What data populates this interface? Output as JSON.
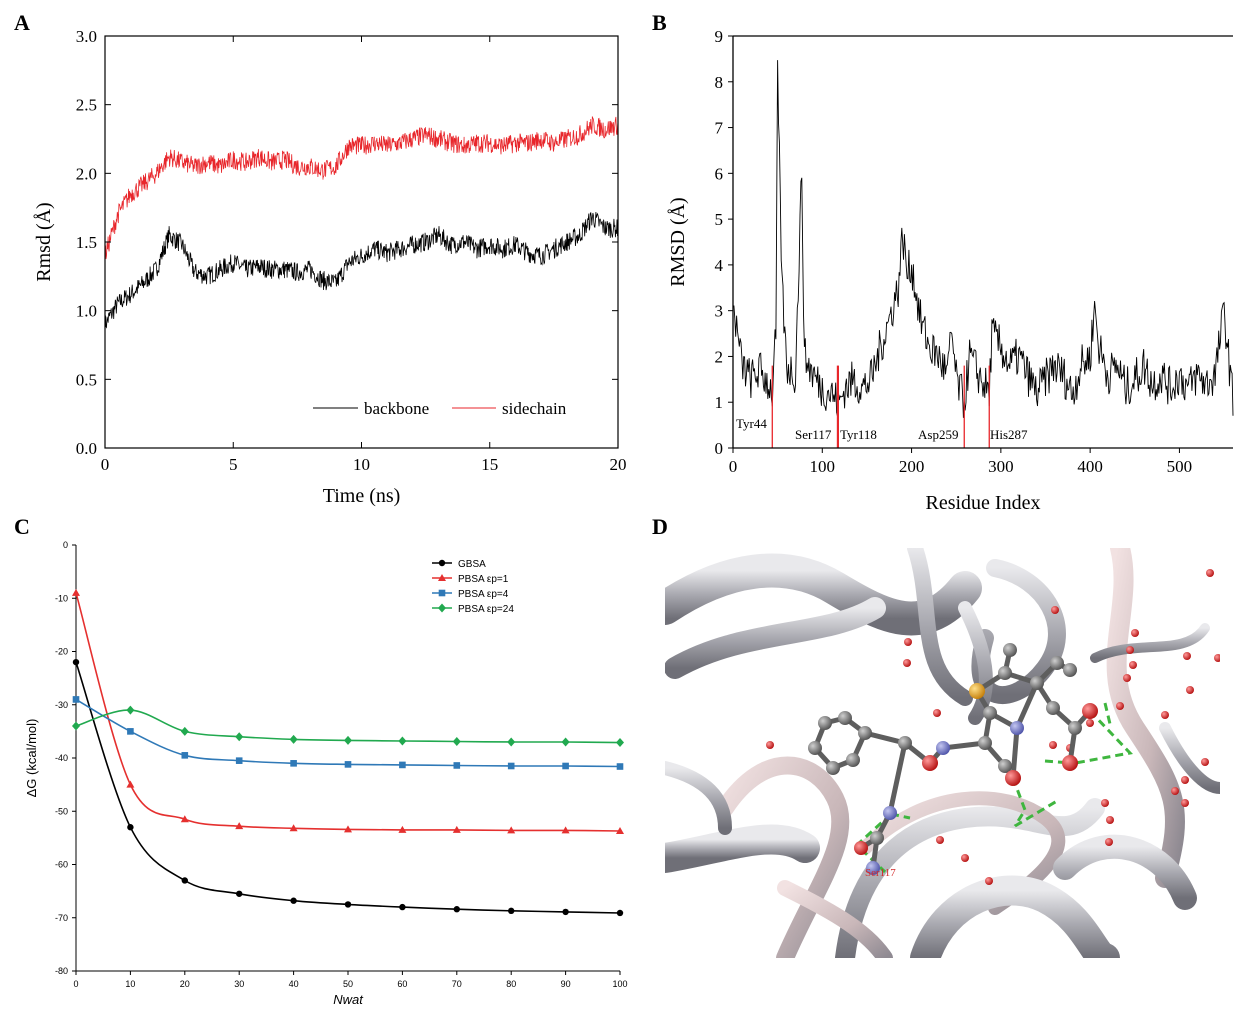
{
  "panels": {
    "a": "A",
    "b": "B",
    "c": "C",
    "d": "D"
  },
  "chart_data": [
    {
      "id": "A",
      "type": "line",
      "xlabel": "Time (ns)",
      "ylabel": "Rmsd (Å)",
      "xlim": [
        0,
        20
      ],
      "ylim": [
        0.0,
        3.0
      ],
      "xticks": [
        "0",
        "5",
        "10",
        "15",
        "20"
      ],
      "yticks": [
        "0.0",
        "0.5",
        "1.0",
        "1.5",
        "2.0",
        "2.5",
        "3.0"
      ],
      "legend_position": "bottom-right",
      "series": [
        {
          "name": "backbone",
          "color": "#000000",
          "x": [
            0,
            0.5,
            1,
            1.5,
            2,
            2.5,
            3,
            3.5,
            4,
            4.5,
            5,
            5.5,
            6,
            6.5,
            7,
            7.5,
            8,
            8.5,
            9,
            9.5,
            10,
            10.5,
            11,
            11.5,
            12,
            12.5,
            13,
            13.5,
            14,
            14.5,
            15,
            15.5,
            16,
            16.5,
            17,
            17.5,
            18,
            18.5,
            19,
            19.5,
            20
          ],
          "y": [
            0.9,
            1.05,
            1.12,
            1.2,
            1.3,
            1.55,
            1.48,
            1.28,
            1.25,
            1.3,
            1.35,
            1.3,
            1.32,
            1.3,
            1.3,
            1.28,
            1.3,
            1.22,
            1.2,
            1.35,
            1.4,
            1.45,
            1.42,
            1.45,
            1.48,
            1.5,
            1.55,
            1.48,
            1.5,
            1.45,
            1.48,
            1.45,
            1.48,
            1.42,
            1.4,
            1.45,
            1.5,
            1.55,
            1.68,
            1.6,
            1.6
          ]
        },
        {
          "name": "sidechain",
          "color": "#e8262b",
          "x": [
            0,
            0.5,
            1,
            1.5,
            2,
            2.5,
            3,
            3.5,
            4,
            4.5,
            5,
            5.5,
            6,
            6.5,
            7,
            7.5,
            8,
            8.5,
            9,
            9.5,
            10,
            10.5,
            11,
            11.5,
            12,
            12.5,
            13,
            13.5,
            14,
            14.5,
            15,
            15.5,
            16,
            16.5,
            17,
            17.5,
            18,
            18.5,
            19,
            19.5,
            20
          ],
          "y": [
            1.4,
            1.7,
            1.85,
            1.92,
            2.0,
            2.12,
            2.08,
            2.05,
            2.08,
            2.05,
            2.1,
            2.08,
            2.12,
            2.08,
            2.1,
            2.05,
            2.05,
            2.02,
            2.05,
            2.2,
            2.2,
            2.22,
            2.2,
            2.22,
            2.25,
            2.28,
            2.25,
            2.22,
            2.2,
            2.22,
            2.22,
            2.2,
            2.22,
            2.22,
            2.25,
            2.22,
            2.25,
            2.28,
            2.35,
            2.32,
            2.35
          ]
        }
      ]
    },
    {
      "id": "B",
      "type": "line",
      "xlabel": "Residue Index",
      "ylabel": "RMSD (Å)",
      "xlim": [
        0,
        560
      ],
      "ylim": [
        0,
        9
      ],
      "xticks": [
        "0",
        "100",
        "200",
        "300",
        "400",
        "500"
      ],
      "yticks": [
        "0",
        "1",
        "2",
        "3",
        "4",
        "5",
        "6",
        "7",
        "8",
        "9"
      ],
      "series": [
        {
          "name": "",
          "color": "#000000",
          "x": [
            1,
            10,
            20,
            30,
            40,
            44,
            48,
            50,
            55,
            60,
            70,
            77,
            80,
            90,
            100,
            110,
            117,
            118,
            125,
            135,
            145,
            155,
            165,
            175,
            185,
            190,
            195,
            200,
            210,
            220,
            230,
            240,
            245,
            250,
            259,
            265,
            275,
            287,
            290,
            300,
            310,
            320,
            330,
            340,
            350,
            360,
            370,
            380,
            390,
            400,
            405,
            410,
            420,
            430,
            440,
            450,
            460,
            470,
            480,
            490,
            500,
            510,
            520,
            530,
            540,
            550,
            560
          ],
          "y": [
            3.0,
            1.8,
            1.5,
            1.7,
            1.4,
            1.2,
            2.5,
            8.05,
            3.5,
            1.8,
            1.6,
            6.1,
            2.0,
            1.6,
            1.3,
            1.2,
            1.0,
            0.9,
            1.3,
            1.5,
            1.3,
            1.5,
            2.2,
            2.8,
            3.5,
            4.7,
            3.8,
            4.0,
            2.8,
            2.2,
            2.0,
            1.6,
            2.5,
            1.5,
            1.0,
            2.0,
            1.6,
            1.2,
            2.5,
            2.2,
            1.8,
            2.0,
            1.6,
            1.2,
            1.5,
            1.8,
            1.6,
            1.2,
            1.8,
            2.0,
            3.1,
            2.2,
            1.6,
            1.8,
            1.3,
            1.5,
            1.8,
            1.4,
            1.6,
            1.3,
            1.6,
            1.3,
            1.6,
            1.4,
            1.6,
            3.0,
            1.0
          ]
        }
      ],
      "markers": [
        {
          "x": 44,
          "label": "Tyr44"
        },
        {
          "x": 117,
          "label": "Ser117"
        },
        {
          "x": 118,
          "label": "Tyr118"
        },
        {
          "x": 259,
          "label": "Asp259"
        },
        {
          "x": 287,
          "label": "His287"
        }
      ]
    },
    {
      "id": "C",
      "type": "line",
      "xlabel": "Nwat",
      "ylabel": "ΔG (kcal/mol)",
      "xlim": [
        0,
        100
      ],
      "ylim": [
        -80,
        0
      ],
      "xticks": [
        "0",
        "10",
        "20",
        "30",
        "40",
        "50",
        "60",
        "70",
        "80",
        "90",
        "100"
      ],
      "yticks": [
        "0",
        "-10",
        "-20",
        "-30",
        "-40",
        "-50",
        "-60",
        "-70",
        "-80"
      ],
      "legend_position": "top-right",
      "x": [
        0,
        10,
        20,
        30,
        40,
        50,
        60,
        70,
        80,
        90,
        100
      ],
      "series": [
        {
          "name": "GBSA",
          "color": "#000000",
          "marker": "circle",
          "values": [
            -22,
            -53,
            -63,
            -65.5,
            -66.8,
            -67.5,
            -68.0,
            -68.4,
            -68.7,
            -68.9,
            -69.1
          ]
        },
        {
          "name": "PBSA εp=1",
          "color": "#e5302f",
          "marker": "triangle",
          "values": [
            -9,
            -45,
            -51.5,
            -52.8,
            -53.2,
            -53.4,
            -53.5,
            -53.5,
            -53.6,
            -53.6,
            -53.7
          ]
        },
        {
          "name": "PBSA εp=4",
          "color": "#2f79b7",
          "marker": "square",
          "values": [
            -29,
            -35,
            -39.5,
            -40.5,
            -41.0,
            -41.2,
            -41.3,
            -41.4,
            -41.5,
            -41.5,
            -41.6
          ]
        },
        {
          "name": "PBSA εp=24",
          "color": "#21a94f",
          "marker": "diamond",
          "values": [
            -34,
            -31,
            -35,
            -36,
            -36.5,
            -36.7,
            -36.8,
            -36.9,
            -37.0,
            -37.0,
            -37.1
          ]
        }
      ]
    }
  ],
  "panel_d": {
    "residue_label": "Ser117",
    "colors": {
      "ribbon": "#b7b7bd",
      "ribbon_light": "#ead6d6",
      "carbon": "#6e6e6e",
      "oxygen": "#e21b1b",
      "nitrogen": "#6e74c8",
      "sulfur": "#e6a31a",
      "hbond": "#3fb63f",
      "water": "#d61a1a"
    }
  }
}
